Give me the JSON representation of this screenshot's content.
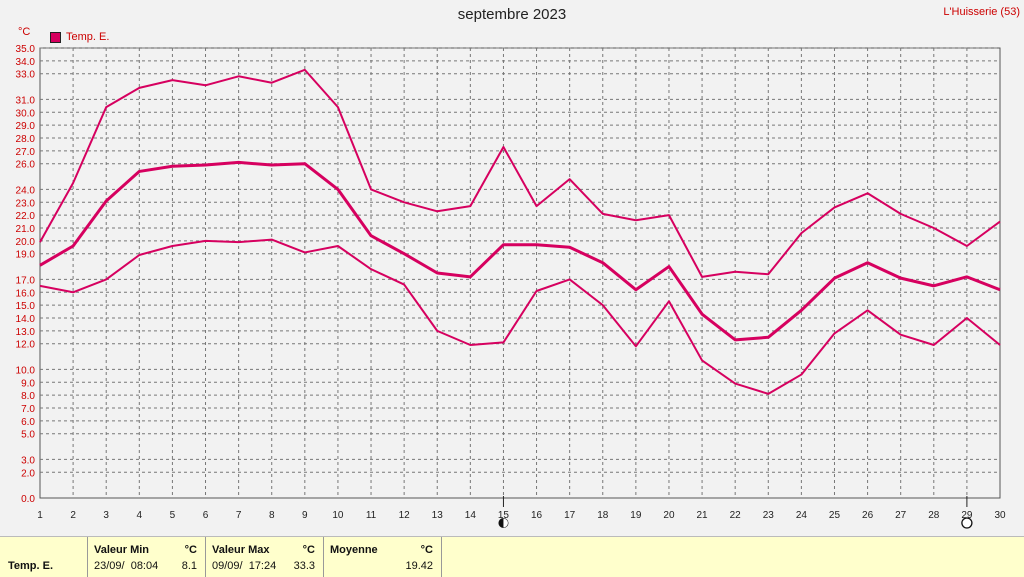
{
  "header": {
    "title": "septembre 2023",
    "location": "L'Huisserie (53)",
    "unit": "°C"
  },
  "legend": {
    "label": "Temp. E."
  },
  "colors": {
    "series": "#d6005f",
    "grid": "#777777",
    "axis_text": "#cc0000",
    "plot_bg": "#f2f2f2"
  },
  "chart_data": {
    "type": "line",
    "title": "septembre 2023",
    "ylabel": "°C",
    "ylim": [
      0,
      35
    ],
    "y_ticks": [
      "0.0",
      "2.0",
      "3.0",
      "5.0",
      "6.0",
      "7.0",
      "8.0",
      "9.0",
      "10.0",
      "12.0",
      "13.0",
      "14.0",
      "15.0",
      "16.0",
      "17.0",
      "19.0",
      "20.0",
      "21.0",
      "22.0",
      "23.0",
      "24.0",
      "26.0",
      "27.0",
      "28.0",
      "29.0",
      "30.0",
      "31.0",
      "33.0",
      "34.0",
      "35.0"
    ],
    "x": [
      "1",
      "2",
      "3",
      "4",
      "5",
      "6",
      "7",
      "8",
      "9",
      "10",
      "11",
      "12",
      "13",
      "14",
      "15",
      "16",
      "17",
      "18",
      "19",
      "20",
      "21",
      "22",
      "23",
      "24",
      "25",
      "26",
      "27",
      "28",
      "29",
      "30"
    ],
    "series": [
      {
        "name": "Max",
        "values": [
          19.9,
          24.5,
          30.4,
          31.9,
          32.5,
          32.1,
          32.8,
          32.3,
          33.3,
          30.4,
          24.0,
          23.0,
          22.3,
          22.7,
          27.3,
          22.7,
          24.8,
          22.1,
          21.6,
          22.0,
          17.2,
          17.6,
          17.4,
          20.6,
          22.6,
          23.7,
          22.1,
          21.0,
          19.6,
          21.5
        ]
      },
      {
        "name": "Moyenne",
        "values": [
          18.1,
          19.6,
          23.1,
          25.4,
          25.8,
          25.9,
          26.1,
          25.9,
          26.0,
          24.0,
          20.4,
          19.0,
          17.5,
          17.2,
          19.7,
          19.7,
          19.5,
          18.3,
          16.2,
          18.0,
          14.3,
          12.3,
          12.5,
          14.6,
          17.1,
          18.3,
          17.1,
          16.5,
          17.2,
          16.2
        ]
      },
      {
        "name": "Min",
        "values": [
          16.5,
          16.0,
          17.0,
          18.9,
          19.6,
          20.0,
          19.9,
          20.1,
          19.1,
          19.6,
          17.8,
          16.6,
          13.0,
          11.9,
          12.1,
          16.1,
          17.0,
          15.0,
          11.8,
          15.3,
          10.7,
          8.9,
          8.1,
          9.6,
          12.8,
          14.6,
          12.7,
          11.9,
          14.0,
          11.9
        ]
      }
    ],
    "markers": [
      {
        "x": "15",
        "type": "new-moon"
      },
      {
        "x": "29",
        "type": "full-moon"
      }
    ],
    "grid": true
  },
  "stats": {
    "series_label": "Temp. E.",
    "min": {
      "label": "Valeur Min",
      "unit": "°C",
      "date": "23/09/  08:04",
      "value": "8.1"
    },
    "max": {
      "label": "Valeur Max",
      "unit": "°C",
      "date": "09/09/  17:24",
      "value": "33.3"
    },
    "avg": {
      "label": "Moyenne",
      "unit": "°C",
      "value": "19.42"
    }
  }
}
